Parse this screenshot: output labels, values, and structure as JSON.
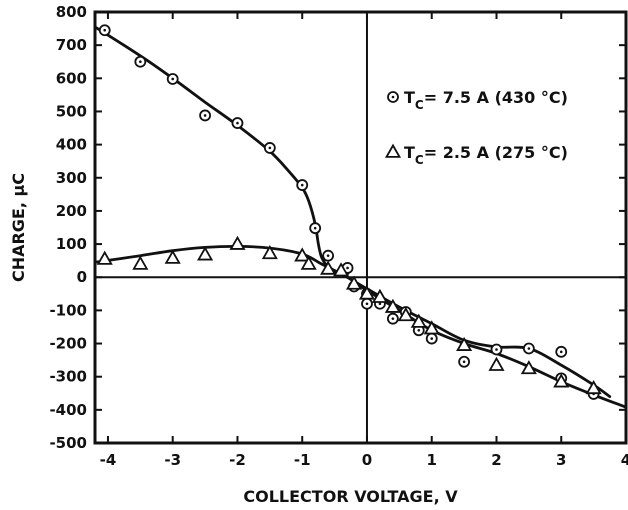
{
  "chart_data": {
    "type": "scatter",
    "title": "",
    "xlabel": "COLLECTOR VOLTAGE, V",
    "ylabel": "CHARGE, μC",
    "xlim": [
      -4.2,
      4.0
    ],
    "ylim": [
      -500,
      800
    ],
    "x_ticks": [
      -4,
      -3,
      -2,
      -1,
      0,
      1,
      2,
      3,
      4
    ],
    "y_ticks": [
      -500,
      -400,
      -300,
      -200,
      -100,
      0,
      100,
      200,
      300,
      400,
      500,
      600,
      700,
      800
    ],
    "zero_lines": true,
    "legend_position": "right",
    "series": [
      {
        "name": "T_C = 7.5 A (430 °C)",
        "legend_prefix": "T",
        "legend_sub": "C",
        "legend_suffix": "= 7.5 A (430 °C)",
        "marker": "circle-dot",
        "color": "#111111",
        "points": [
          [
            -4.05,
            745
          ],
          [
            -3.5,
            650
          ],
          [
            -3.0,
            598
          ],
          [
            -2.5,
            488
          ],
          [
            -2.0,
            465
          ],
          [
            -1.5,
            390
          ],
          [
            -1.0,
            278
          ],
          [
            -0.8,
            148
          ],
          [
            -0.6,
            65
          ],
          [
            -0.35,
            20
          ],
          [
            -0.3,
            28
          ],
          [
            -0.2,
            -28
          ],
          [
            0.0,
            -50
          ],
          [
            0.0,
            -80
          ],
          [
            0.2,
            -80
          ],
          [
            0.4,
            -125
          ],
          [
            0.6,
            -105
          ],
          [
            0.8,
            -160
          ],
          [
            1.0,
            -185
          ],
          [
            1.5,
            -255
          ],
          [
            2.0,
            -218
          ],
          [
            2.5,
            -215
          ],
          [
            3.0,
            -225
          ],
          [
            3.0,
            -305
          ],
          [
            3.5,
            -352
          ]
        ],
        "curve": [
          [
            -4.2,
            755
          ],
          [
            -3.5,
            668
          ],
          [
            -3.0,
            600
          ],
          [
            -2.5,
            528
          ],
          [
            -2.0,
            458
          ],
          [
            -1.5,
            380
          ],
          [
            -1.2,
            318
          ],
          [
            -1.0,
            270
          ],
          [
            -0.9,
            230
          ],
          [
            -0.8,
            160
          ],
          [
            -0.75,
            100
          ],
          [
            -0.7,
            60
          ],
          [
            -0.6,
            30
          ],
          [
            -0.5,
            15
          ],
          [
            -0.3,
            0
          ],
          [
            0.0,
            -40
          ],
          [
            0.5,
            -100
          ],
          [
            1.0,
            -160
          ],
          [
            1.5,
            -200
          ],
          [
            2.0,
            -230
          ],
          [
            2.5,
            -270
          ],
          [
            3.0,
            -315
          ],
          [
            3.5,
            -355
          ],
          [
            4.0,
            -392
          ]
        ]
      },
      {
        "name": "T_C = 2.5 A (275 °C)",
        "legend_prefix": "T",
        "legend_sub": "C",
        "legend_suffix": "= 2.5 A (275 °C)",
        "marker": "triangle",
        "color": "#111111",
        "points": [
          [
            -4.05,
            55
          ],
          [
            -3.5,
            40
          ],
          [
            -3.0,
            58
          ],
          [
            -2.5,
            68
          ],
          [
            -2.0,
            100
          ],
          [
            -1.5,
            72
          ],
          [
            -1.0,
            65
          ],
          [
            -0.9,
            40
          ],
          [
            -0.6,
            25
          ],
          [
            -0.4,
            20
          ],
          [
            -0.2,
            -20
          ],
          [
            0.0,
            -50
          ],
          [
            0.2,
            -60
          ],
          [
            0.4,
            -90
          ],
          [
            0.6,
            -115
          ],
          [
            0.8,
            -135
          ],
          [
            1.0,
            -155
          ],
          [
            1.5,
            -205
          ],
          [
            2.0,
            -265
          ],
          [
            2.5,
            -275
          ],
          [
            3.0,
            -315
          ],
          [
            3.5,
            -335
          ]
        ],
        "curve": [
          [
            -4.2,
            45
          ],
          [
            -3.5,
            65
          ],
          [
            -3.0,
            80
          ],
          [
            -2.5,
            90
          ],
          [
            -2.0,
            93
          ],
          [
            -1.5,
            88
          ],
          [
            -1.0,
            70
          ],
          [
            -0.7,
            40
          ],
          [
            -0.4,
            10
          ],
          [
            -0.2,
            -12
          ],
          [
            0.0,
            -35
          ],
          [
            0.5,
            -90
          ],
          [
            1.0,
            -140
          ],
          [
            1.5,
            -190
          ],
          [
            2.0,
            -210
          ],
          [
            2.5,
            -215
          ],
          [
            3.0,
            -265
          ],
          [
            3.5,
            -325
          ],
          [
            3.75,
            -360
          ]
        ]
      }
    ]
  }
}
